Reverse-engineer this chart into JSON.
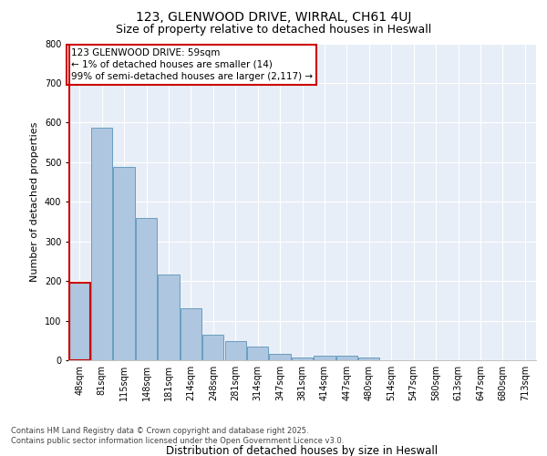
{
  "title": "123, GLENWOOD DRIVE, WIRRAL, CH61 4UJ",
  "subtitle": "Size of property relative to detached houses in Heswall",
  "xlabel": "Distribution of detached houses by size in Heswall",
  "ylabel": "Number of detached properties",
  "bar_labels": [
    "48sqm",
    "81sqm",
    "115sqm",
    "148sqm",
    "181sqm",
    "214sqm",
    "248sqm",
    "281sqm",
    "314sqm",
    "347sqm",
    "381sqm",
    "414sqm",
    "447sqm",
    "480sqm",
    "514sqm",
    "547sqm",
    "580sqm",
    "613sqm",
    "647sqm",
    "680sqm",
    "713sqm"
  ],
  "bar_values": [
    196,
    588,
    487,
    360,
    217,
    132,
    65,
    48,
    35,
    15,
    8,
    11,
    11,
    7,
    0,
    0,
    0,
    0,
    0,
    0,
    0
  ],
  "bar_color": "#aec6df",
  "bar_edge_color": "#6a9ec0",
  "highlight_color": "#cc0000",
  "annotation_title": "123 GLENWOOD DRIVE: 59sqm",
  "annotation_line1": "← 1% of detached houses are smaller (14)",
  "annotation_line2": "99% of semi-detached houses are larger (2,117) →",
  "ylim": [
    0,
    800
  ],
  "yticks": [
    0,
    100,
    200,
    300,
    400,
    500,
    600,
    700,
    800
  ],
  "plot_bg_color": "#e8eef7",
  "footer": "Contains HM Land Registry data © Crown copyright and database right 2025.\nContains public sector information licensed under the Open Government Licence v3.0.",
  "title_fontsize": 10,
  "subtitle_fontsize": 9,
  "xlabel_fontsize": 8.5,
  "ylabel_fontsize": 8,
  "tick_fontsize": 7,
  "annot_fontsize": 7.5
}
